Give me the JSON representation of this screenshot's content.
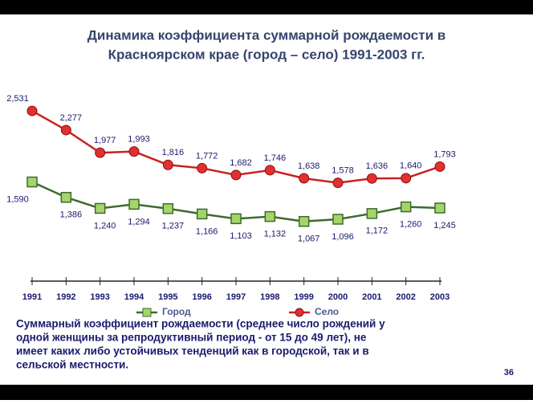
{
  "header": {
    "title_lines": [
      "Динамика коэффициента суммарной рождаемости в",
      "Красноярском крае (город – село) 1991-2003 гг."
    ]
  },
  "chart_data": {
    "type": "line",
    "categories": [
      "1991",
      "1992",
      "1993",
      "1994",
      "1995",
      "1996",
      "1997",
      "1998",
      "1999",
      "2000",
      "2001",
      "2002",
      "2003"
    ],
    "ylim": [
      1,
      3
    ],
    "series": [
      {
        "name": "Город",
        "color": "#3d6b2f",
        "marker_color": "#a6d46a",
        "values": [
          1.59,
          1.386,
          1.24,
          1.294,
          1.237,
          1.166,
          1.103,
          1.132,
          1.067,
          1.096,
          1.172,
          1.26,
          1.245
        ],
        "value_labels": [
          "1,590",
          "1,386",
          "1,240",
          "1,294",
          "1,237",
          "1,166",
          "1,103",
          "1,132",
          "1,067",
          "1,096",
          "1,172",
          "1,260",
          "1,245"
        ]
      },
      {
        "name": "Село",
        "color": "#cc2020",
        "marker_color": "#e03030",
        "values": [
          2.531,
          2.277,
          1.977,
          1.993,
          1.816,
          1.772,
          1.682,
          1.746,
          1.638,
          1.578,
          1.636,
          1.64,
          1.793
        ],
        "value_labels": [
          "2,531",
          "2,277",
          "1,977",
          "1,993",
          "1,816",
          "1,772",
          "1,682",
          "1,746",
          "1,638",
          "1,578",
          "1,636",
          "1,640",
          "1,793"
        ]
      }
    ]
  },
  "note_lines": [
    "Суммарный коэффициент рождаемости (среднее число рождений у",
    "одной женщины за репродуктивный период - от 15 до 49 лет), не",
    "имеет каких либо устойчивых тенденций как в городской, так и в",
    "сельской местности."
  ],
  "page_number": "36"
}
